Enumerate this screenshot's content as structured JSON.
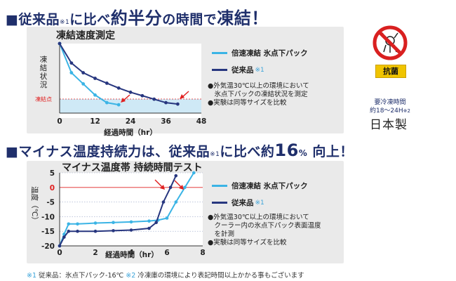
{
  "heading1": {
    "sq": "■",
    "a": "従来品",
    "note": "※1",
    "b": "に比べ",
    "c": "約半分",
    "d": "の時間で",
    "e": "凍結！"
  },
  "heading2": {
    "sq": "■",
    "a": "マイナス温度持続力は、従来品",
    "note": "※1",
    "b": "に比べ約",
    "c": "16",
    "d": "%",
    "e": " 向上！"
  },
  "badge_label": "抗菌",
  "side_info": {
    "line1": "要冷凍時間",
    "line2": "約18〜24H",
    "line2_note": "※2",
    "made": "日本製"
  },
  "footnote": {
    "m1": "※1",
    "t1": " 従来品：氷点下パック-16℃ ",
    "m2": "※2",
    "t2": " 冷凍庫の環境により表記時間以上かかる事もございます"
  },
  "colors": {
    "fast": "#3bb4e5",
    "conventional": "#27367f",
    "accent": "#e02020",
    "heading": "#1f2f6b"
  },
  "chart_data": [
    {
      "type": "line",
      "title": "凍結速度測定",
      "xlabel": "経過時間（hr）",
      "ylabel": "凍結状況",
      "threshold_label": "凍結点",
      "x_ticks": [
        0,
        12,
        24,
        36,
        48
      ],
      "xlim": [
        0,
        48
      ],
      "y_unit_note": "relative freezing state (no numeric ticks)",
      "ylim": [
        0,
        1
      ],
      "threshold": 0.1,
      "series": [
        {
          "name": "倍速凍結 氷点下パック",
          "color": "#3bb4e5",
          "x": [
            0,
            4,
            8,
            12,
            16,
            20
          ],
          "y": [
            1.0,
            0.58,
            0.42,
            0.26,
            0.15,
            0.12
          ]
        },
        {
          "name": "従来品",
          "note": "※1",
          "color": "#27367f",
          "x": [
            0,
            4,
            8,
            12,
            16,
            20,
            24,
            28,
            32,
            36,
            40
          ],
          "y": [
            1.0,
            0.72,
            0.58,
            0.5,
            0.43,
            0.36,
            0.3,
            0.25,
            0.2,
            0.15,
            0.13
          ]
        }
      ],
      "legend": {
        "placement": "right",
        "items": [
          {
            "label": "倍速凍結 氷点下パック",
            "note": "",
            "color": "#3bb4e5"
          },
          {
            "label": "従来品",
            "note": "※1",
            "color": "#27367f"
          }
        ]
      },
      "notes": [
        "●外気温30℃以上の環境において",
        "　氷点下パックの凍結状況を測定",
        "●実験は同等サイズを比較"
      ]
    },
    {
      "type": "line",
      "title": "マイナス温度帯 持続時間テスト",
      "xlabel": "経過時間（hr）",
      "ylabel": "温度（℃）",
      "x_ticks": [
        0,
        2,
        4,
        6,
        8
      ],
      "y_ticks": [
        5,
        0,
        -5,
        -10,
        -15,
        -20
      ],
      "xlim": [
        0,
        8
      ],
      "ylim": [
        -20,
        5
      ],
      "zero_line": 0,
      "series": [
        {
          "name": "倍速凍結 氷点下パック",
          "color": "#3bb4e5",
          "x": [
            0,
            0.25,
            0.5,
            1,
            2,
            3,
            4,
            5,
            5.5,
            6,
            6.5,
            7,
            7.5
          ],
          "y": [
            -20,
            -16,
            -12.5,
            -12.5,
            -12.2,
            -12,
            -11.8,
            -11.5,
            -11.2,
            -10.5,
            -5,
            0,
            5
          ]
        },
        {
          "name": "従来品",
          "note": "※1",
          "color": "#27367f",
          "x": [
            0,
            0.25,
            0.5,
            1,
            2,
            3,
            4,
            5,
            5.4,
            5.8,
            6.2,
            6.5
          ],
          "y": [
            -20,
            -17,
            -15,
            -15,
            -15,
            -14.8,
            -14.6,
            -14,
            -12,
            -5,
            0,
            4
          ]
        }
      ],
      "legend": {
        "placement": "right",
        "items": [
          {
            "label": "倍速凍結 氷点下パック",
            "note": "",
            "color": "#3bb4e5"
          },
          {
            "label": "従来品",
            "note": "※1",
            "color": "#27367f"
          }
        ]
      },
      "notes": [
        "●外気温30℃以上の環境において",
        "　クーラー内の氷点下パック表面温度",
        "　を計測",
        "●実験は同等サイズを比較"
      ]
    }
  ]
}
